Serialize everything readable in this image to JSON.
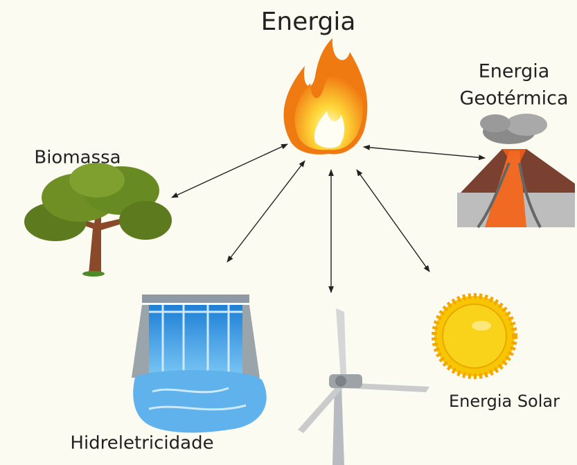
{
  "title": "Energia",
  "nodes": [
    {
      "label_lines": [
        "Energia",
        "Geotérmica"
      ]
    },
    {
      "label": "Biomassa"
    },
    {
      "label": "Hidreletricidade"
    },
    {
      "label": "Energia Solar"
    }
  ]
}
